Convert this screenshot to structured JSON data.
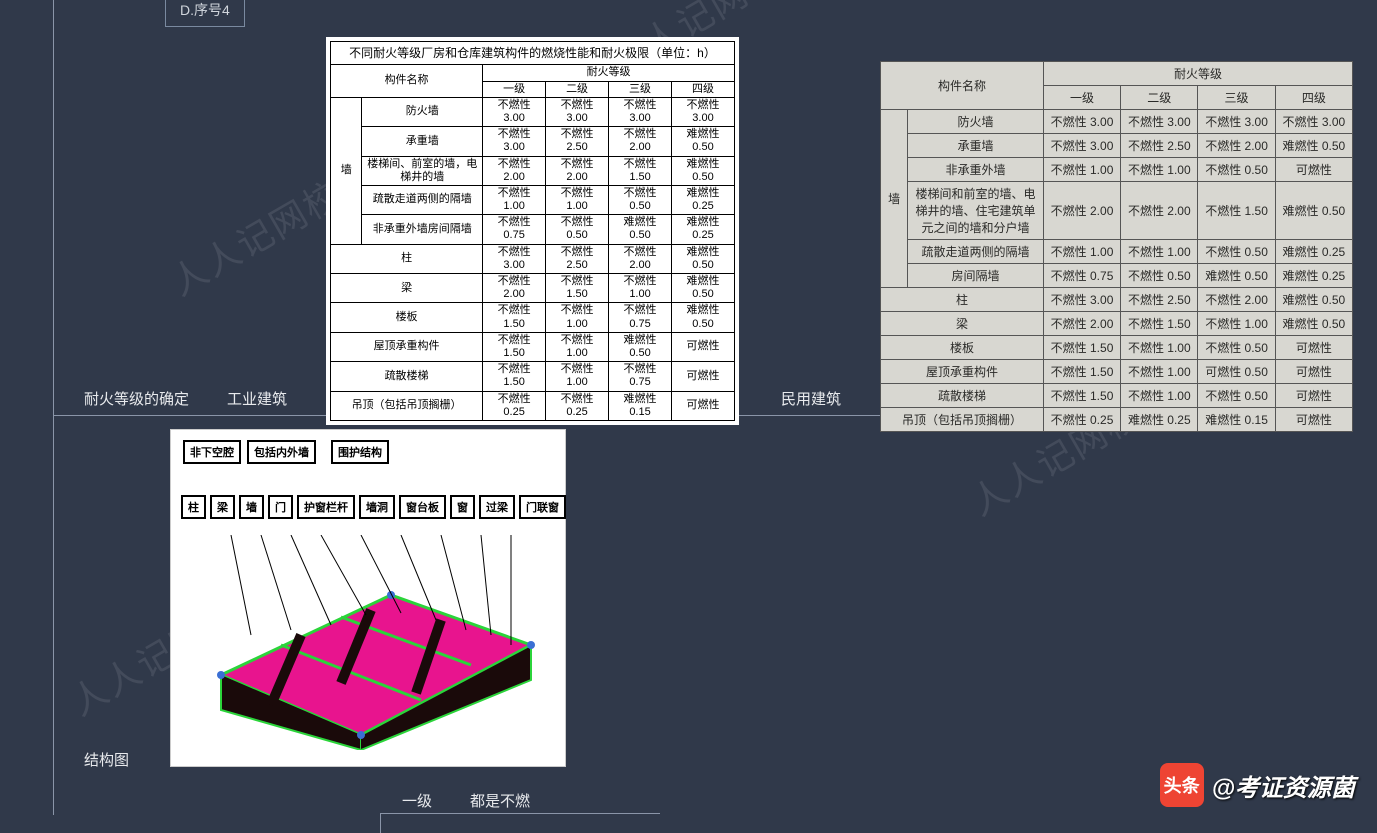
{
  "option": "D.序号4",
  "labels": {
    "fire_rating": "耐火等级的确定",
    "industrial": "工业建筑",
    "civil": "民用建筑",
    "structure_diagram": "结构图",
    "grade1": "一级",
    "all_noncomb": "都是不燃"
  },
  "watermark_text": "人人记网校",
  "credit": {
    "badge": "头条",
    "handle": "@考证资源菌"
  },
  "table1": {
    "title": "不同耐火等级厂房和仓库建筑构件的燃烧性能和耐火极限（单位：h）",
    "header_component": "构件名称",
    "header_grade": "耐火等级",
    "grades": [
      "一级",
      "二级",
      "三级",
      "四级"
    ],
    "groups": [
      {
        "group": "墙",
        "rows": [
          {
            "name": "防火墙",
            "cells": [
              [
                "不燃性",
                "3.00"
              ],
              [
                "不燃性",
                "3.00"
              ],
              [
                "不燃性",
                "3.00"
              ],
              [
                "不燃性",
                "3.00"
              ]
            ]
          },
          {
            "name": "承重墙",
            "cells": [
              [
                "不燃性",
                "3.00"
              ],
              [
                "不燃性",
                "2.50"
              ],
              [
                "不燃性",
                "2.00"
              ],
              [
                "难燃性",
                "0.50"
              ]
            ]
          },
          {
            "name": "楼梯间、前室的墙，电梯井的墙",
            "cells": [
              [
                "不燃性",
                "2.00"
              ],
              [
                "不燃性",
                "2.00"
              ],
              [
                "不燃性",
                "1.50"
              ],
              [
                "难燃性",
                "0.50"
              ]
            ]
          },
          {
            "name": "疏散走道两侧的隔墙",
            "cells": [
              [
                "不燃性",
                "1.00"
              ],
              [
                "不燃性",
                "1.00"
              ],
              [
                "不燃性",
                "0.50"
              ],
              [
                "难燃性",
                "0.25"
              ]
            ]
          },
          {
            "name": "非承重外墙房间隔墙",
            "cells": [
              [
                "不燃性",
                "0.75"
              ],
              [
                "不燃性",
                "0.50"
              ],
              [
                "难燃性",
                "0.50"
              ],
              [
                "难燃性",
                "0.25"
              ]
            ]
          }
        ]
      }
    ],
    "single_rows": [
      {
        "name": "柱",
        "cells": [
          [
            "不燃性",
            "3.00"
          ],
          [
            "不燃性",
            "2.50"
          ],
          [
            "不燃性",
            "2.00"
          ],
          [
            "难燃性",
            "0.50"
          ]
        ]
      },
      {
        "name": "梁",
        "cells": [
          [
            "不燃性",
            "2.00"
          ],
          [
            "不燃性",
            "1.50"
          ],
          [
            "不燃性",
            "1.00"
          ],
          [
            "难燃性",
            "0.50"
          ]
        ]
      },
      {
        "name": "楼板",
        "cells": [
          [
            "不燃性",
            "1.50"
          ],
          [
            "不燃性",
            "1.00"
          ],
          [
            "不燃性",
            "0.75"
          ],
          [
            "难燃性",
            "0.50"
          ]
        ]
      },
      {
        "name": "屋顶承重构件",
        "cells": [
          [
            "不燃性",
            "1.50"
          ],
          [
            "不燃性",
            "1.00"
          ],
          [
            "难燃性",
            "0.50"
          ],
          [
            "可燃性",
            ""
          ]
        ]
      },
      {
        "name": "疏散楼梯",
        "cells": [
          [
            "不燃性",
            "1.50"
          ],
          [
            "不燃性",
            "1.00"
          ],
          [
            "不燃性",
            "0.75"
          ],
          [
            "可燃性",
            ""
          ]
        ]
      },
      {
        "name": "吊顶（包括吊顶搁栅）",
        "cells": [
          [
            "不燃性",
            "0.25"
          ],
          [
            "不燃性",
            "0.25"
          ],
          [
            "难燃性",
            "0.15"
          ],
          [
            "可燃性",
            ""
          ]
        ]
      }
    ]
  },
  "table2": {
    "header_component": "构件名称",
    "header_grade": "耐火等级",
    "grades": [
      "一级",
      "二级",
      "三级",
      "四级"
    ],
    "group_label": "墙",
    "wall_rows": [
      {
        "name": "防火墙",
        "cells": [
          "不燃性 3.00",
          "不燃性 3.00",
          "不燃性 3.00",
          "不燃性 3.00"
        ]
      },
      {
        "name": "承重墙",
        "cells": [
          "不燃性 3.00",
          "不燃性 2.50",
          "不燃性 2.00",
          "难燃性 0.50"
        ]
      },
      {
        "name": "非承重外墙",
        "cells": [
          "不燃性 1.00",
          "不燃性 1.00",
          "不燃性 0.50",
          "可燃性"
        ]
      },
      {
        "name": "楼梯间和前室的墙、电梯井的墙、住宅建筑单元之间的墙和分户墙",
        "cells": [
          "不燃性 2.00",
          "不燃性 2.00",
          "不燃性 1.50",
          "难燃性 0.50"
        ]
      },
      {
        "name": "疏散走道两侧的隔墙",
        "cells": [
          "不燃性 1.00",
          "不燃性 1.00",
          "不燃性 0.50",
          "难燃性 0.25"
        ]
      },
      {
        "name": "房间隔墙",
        "cells": [
          "不燃性 0.75",
          "不燃性 0.50",
          "难燃性 0.50",
          "难燃性 0.25"
        ]
      }
    ],
    "spanning_rows": [
      {
        "name": "柱",
        "cells": [
          "不燃性 3.00",
          "不燃性 2.50",
          "不燃性 2.00",
          "难燃性 0.50"
        ]
      },
      {
        "name": "梁",
        "cells": [
          "不燃性 2.00",
          "不燃性 1.50",
          "不燃性 1.00",
          "难燃性 0.50"
        ]
      },
      {
        "name": "楼板",
        "cells": [
          "不燃性 1.50",
          "不燃性 1.00",
          "不燃性 0.50",
          "可燃性"
        ]
      },
      {
        "name": "屋顶承重构件",
        "cells": [
          "不燃性 1.50",
          "不燃性 1.00",
          "可燃性 0.50",
          "可燃性"
        ]
      },
      {
        "name": "疏散楼梯",
        "cells": [
          "不燃性 1.50",
          "不燃性 1.00",
          "不燃性 0.50",
          "可燃性"
        ]
      },
      {
        "name": "吊顶（包括吊顶搁栅）",
        "cells": [
          "不燃性 0.25",
          "难燃性 0.25",
          "难燃性 0.15",
          "可燃性"
        ]
      }
    ]
  },
  "diagram": {
    "top_labels": [
      "非下空腔",
      "包括内外墙",
      "围护结构"
    ],
    "mid_labels": [
      "柱",
      "梁",
      "墙",
      "门",
      "护窗栏杆",
      "墙洞",
      "窗台板",
      "窗",
      "过梁",
      "门联窗"
    ],
    "colors": {
      "floor": "#e8148e",
      "wall": "#1a0a0a",
      "edge": "#2bd43a",
      "node": "#3a6fd4"
    }
  }
}
